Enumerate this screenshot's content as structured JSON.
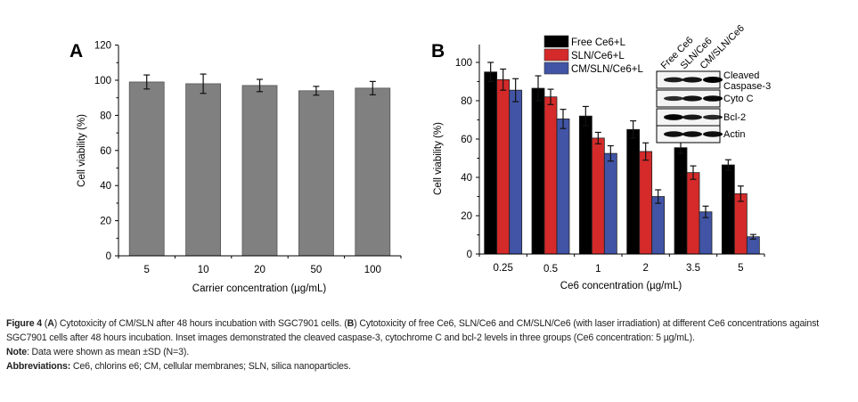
{
  "chart_data": [
    {
      "panel_label": "A",
      "type": "bar",
      "categories": [
        "5",
        "10",
        "20",
        "50",
        "100"
      ],
      "series": [
        {
          "name": "Carrier",
          "color": "#808080",
          "values": [
            99,
            98,
            97,
            94,
            95.5
          ],
          "errors": [
            4,
            5.5,
            3.5,
            2.5,
            3.8
          ]
        }
      ],
      "xlabel": "Carrier concentration (µg/mL)",
      "ylabel": "Cell viability (%)",
      "ylim": [
        0,
        120
      ],
      "yticks": [
        0,
        20,
        40,
        60,
        80,
        100,
        120
      ],
      "grid": false,
      "legend": null
    },
    {
      "panel_label": "B",
      "type": "bar",
      "categories": [
        "0.25",
        "0.5",
        "1",
        "2",
        "3.5",
        "5"
      ],
      "series": [
        {
          "name": "Free Ce6+L",
          "color": "#000000",
          "values": [
            95,
            86.5,
            72,
            65,
            55.5,
            46.5
          ],
          "errors": [
            5,
            6.5,
            5,
            4.5,
            3,
            2.7
          ]
        },
        {
          "name": "SLN/Ce6+L",
          "color": "#d42a2a",
          "values": [
            91,
            82,
            60.5,
            53.5,
            42.5,
            31.5
          ],
          "errors": [
            5.5,
            4,
            3,
            4.5,
            3.5,
            4
          ]
        },
        {
          "name": "CM/SLN/Ce6+L",
          "color": "#4154a5",
          "values": [
            85.5,
            70.5,
            52.5,
            30,
            22,
            9
          ],
          "errors": [
            6,
            5,
            4,
            3.5,
            3,
            1.2
          ]
        }
      ],
      "xlabel": "Ce6 concentration (µg/mL)",
      "ylabel": "Cell viability (%)",
      "ylim": [
        0,
        110
      ],
      "yticks": [
        0,
        20,
        40,
        60,
        80,
        100
      ],
      "grid": false,
      "legend": "top-left",
      "inset": {
        "type": "western-blot",
        "lanes": [
          "Free Ce6",
          "SLN/Ce6",
          "CM/SLN/Ce6"
        ],
        "rows": [
          {
            "label": "Cleaved Caspase-3",
            "label_lines": [
              "Cleaved",
              "Caspase-3"
            ],
            "intensity": [
              0.7,
              0.8,
              1.0
            ]
          },
          {
            "label": "Cyto C",
            "label_lines": [
              "Cyto C"
            ],
            "intensity": [
              0.55,
              0.8,
              0.9
            ]
          },
          {
            "label": "Bcl-2",
            "label_lines": [
              "Bcl-2"
            ],
            "intensity": [
              0.95,
              0.75,
              0.6
            ]
          },
          {
            "label": "Actin",
            "label_lines": [
              "Actin"
            ],
            "intensity": [
              0.85,
              0.85,
              0.85
            ]
          }
        ]
      }
    }
  ],
  "caption": {
    "figure_label": "Figure 4",
    "main": [
      {
        "bold": "",
        "text": " ("
      },
      {
        "bold": "A",
        "text": ") Cytotoxicity of CM/SLN after 48 hours incubation with SGC7901 cells. ("
      },
      {
        "bold": "B",
        "text": ") Cytotoxicity of free Ce6, SLN/Ce6 and CM/SLN/Ce6 (with laser irradiation) at different Ce6 concentrations against SGC7901 cells after 48 hours incubation. Inset images demonstrated the cleaved caspase-3, cytochrome C and bcl-2 levels in three groups (Ce6 concentration: 5 µg/mL)."
      }
    ],
    "note_label": "Note",
    "note_text": ": Data were shown as mean ±SD (N=3).",
    "abbrev_label": "Abbreviations:",
    "abbrev_text": " Ce6, chlorins e6; CM, cellular membranes; SLN, silica nanoparticles."
  }
}
